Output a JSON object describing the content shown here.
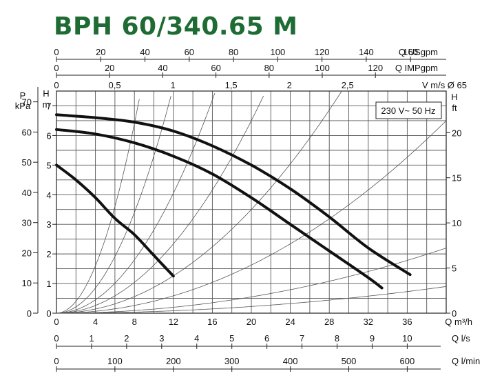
{
  "title": "BPH 60/340.65 M",
  "chart_data": {
    "type": "line",
    "title": "BPH 60/340.65 M",
    "annotation": "230 V~ 50 Hz",
    "grid": true,
    "x_axis": {
      "label": "Q m³/h",
      "range": [
        0,
        40
      ],
      "ticks": [
        "0",
        "4",
        "8",
        "12",
        "16",
        "20",
        "24",
        "28",
        "32",
        "36"
      ]
    },
    "y_axis": {
      "label": "H m",
      "range": [
        0,
        7.5
      ],
      "ticks": [
        "0",
        "1",
        "2",
        "3",
        "4",
        "5",
        "6",
        "7"
      ]
    },
    "secondary_axes": {
      "pressure": {
        "label_top": "P",
        "label_unit": "kPa",
        "ticks": [
          "0",
          "10",
          "20",
          "30",
          "40",
          "50",
          "60",
          "70"
        ]
      },
      "head_ft": {
        "label_top": "H",
        "label_unit": "ft",
        "ticks": [
          "0",
          "5",
          "10",
          "15",
          "20"
        ]
      },
      "us_gpm": {
        "label": "Q USgpm",
        "ticks": [
          "0",
          "20",
          "40",
          "60",
          "80",
          "100",
          "120",
          "140",
          "160"
        ]
      },
      "imp_gpm": {
        "label": "Q IMPgpm",
        "ticks": [
          "0",
          "20",
          "40",
          "60",
          "80",
          "100",
          "120"
        ]
      },
      "velocity": {
        "label": "V m/s Ø 65",
        "ticks": [
          "0",
          "0,5",
          "1",
          "1,5",
          "2",
          "2,5"
        ]
      },
      "ls": {
        "label": "Q l/s",
        "ticks": [
          "0",
          "1",
          "2",
          "3",
          "4",
          "5",
          "6",
          "7",
          "8",
          "9",
          "10"
        ]
      },
      "lmin": {
        "label": "Q l/min",
        "ticks": [
          "0",
          "100",
          "200",
          "300",
          "400",
          "500",
          "600"
        ]
      }
    },
    "series": [
      {
        "x": [
          0,
          4,
          8,
          12,
          16,
          20,
          24,
          28,
          32,
          36.3
        ],
        "y": [
          6.7,
          6.6,
          6.45,
          6.15,
          5.65,
          5.0,
          4.2,
          3.25,
          2.2,
          1.3
        ]
      },
      {
        "x": [
          0,
          4,
          8,
          12,
          16,
          20,
          24,
          28,
          32,
          33.4
        ],
        "y": [
          6.2,
          6.05,
          5.75,
          5.3,
          4.7,
          3.9,
          3.0,
          2.1,
          1.2,
          0.85
        ]
      },
      {
        "x": [
          0,
          2,
          4,
          6,
          8,
          10,
          12
        ],
        "y": [
          5.0,
          4.5,
          3.9,
          3.2,
          2.65,
          1.95,
          1.25
        ]
      }
    ],
    "system_curves": [
      1.6,
      0.85,
      0.45,
      0.26,
      0.14,
      0.065,
      0.022,
      0.009
    ]
  }
}
